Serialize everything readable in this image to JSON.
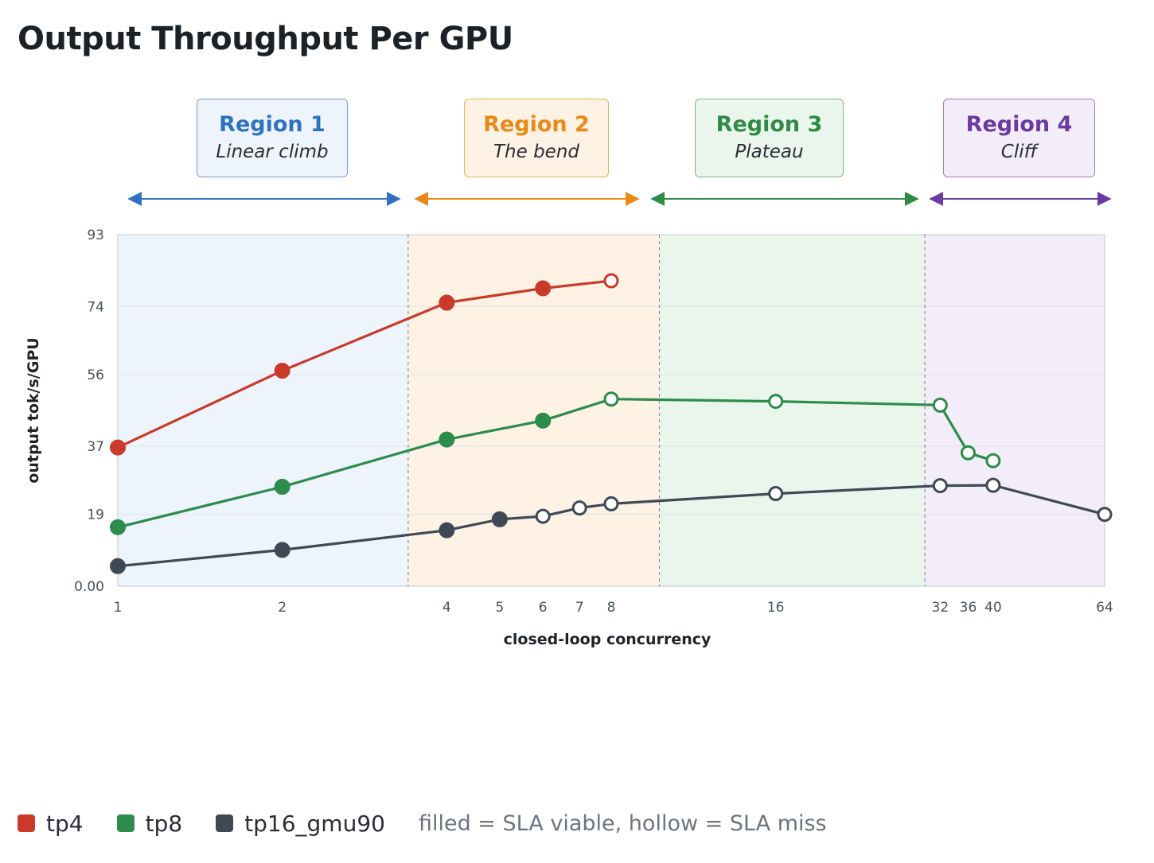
{
  "title": "Output Throughput Per GPU",
  "regions": [
    {
      "name": "Region 1",
      "desc": "Linear climb",
      "color": "#2f72c2",
      "fill": "#eef4fb"
    },
    {
      "name": "Region 2",
      "desc": "The bend",
      "color": "#e8891a",
      "fill": "#fdf2e3"
    },
    {
      "name": "Region 3",
      "desc": "Plateau",
      "color": "#2f8b45",
      "fill": "#eaf5ec"
    },
    {
      "name": "Region 4",
      "desc": "Cliff",
      "color": "#6c3aa3",
      "fill": "#f3ecf9"
    }
  ],
  "legend": {
    "items": [
      {
        "label": "tp4",
        "color": "#c93a2a"
      },
      {
        "label": "tp8",
        "color": "#2c8c4b"
      },
      {
        "label": "tp16_gmu90",
        "color": "#3f4956"
      }
    ],
    "note": "filled = SLA viable, hollow = SLA miss"
  },
  "chart_data": {
    "type": "line",
    "xlabel": "closed-loop concurrency",
    "ylabel": "output tok/s/GPU",
    "ylim": [
      0,
      93
    ],
    "yticks": [
      "0.00",
      "19",
      "37",
      "56",
      "74",
      "93"
    ],
    "xticks": [
      1,
      2,
      4,
      5,
      6,
      7,
      8,
      16,
      32,
      36,
      40,
      64
    ],
    "x_scale": "log2",
    "region_boundaries": [
      3.4,
      9.8,
      30
    ],
    "grid": true,
    "series": [
      {
        "name": "tp4",
        "color": "#c93a2a",
        "x": [
          1,
          2,
          4,
          6,
          8
        ],
        "y": [
          36.7,
          57.0,
          75.0,
          78.8,
          80.8
        ],
        "sla_viable": [
          true,
          true,
          true,
          true,
          false
        ]
      },
      {
        "name": "tp8",
        "color": "#2c8c4b",
        "x": [
          1,
          2,
          4,
          6,
          8,
          16,
          32,
          36,
          40
        ],
        "y": [
          15.6,
          26.3,
          38.8,
          43.8,
          49.5,
          48.9,
          47.9,
          35.3,
          33.2
        ],
        "sla_viable": [
          true,
          true,
          true,
          true,
          false,
          false,
          false,
          false,
          false
        ]
      },
      {
        "name": "tp16_gmu90",
        "color": "#3f4956",
        "x": [
          1,
          2,
          4,
          5,
          6,
          7,
          8,
          16,
          32,
          40,
          64
        ],
        "y": [
          5.3,
          9.6,
          14.8,
          17.7,
          18.5,
          20.7,
          21.8,
          24.5,
          26.6,
          26.7,
          19.0
        ],
        "sla_viable": [
          true,
          true,
          true,
          true,
          false,
          false,
          false,
          false,
          false,
          false,
          false
        ]
      }
    ]
  }
}
